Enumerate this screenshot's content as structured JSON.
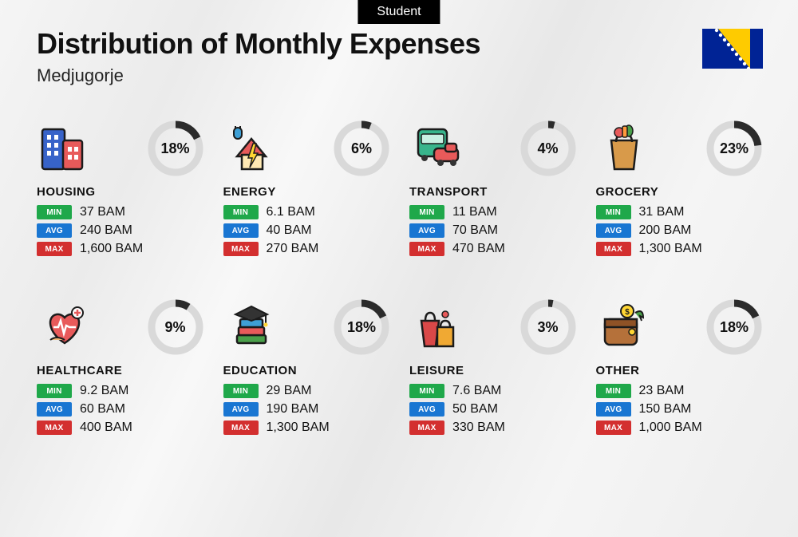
{
  "tag": "Student",
  "title": "Distribution of Monthly Expenses",
  "subtitle": "Medjugorje",
  "badges": {
    "min": "MIN",
    "avg": "AVG",
    "max": "MAX"
  },
  "currency": "BAM",
  "donut": {
    "track_color": "#d9d9d9",
    "fill_color": "#2b2b2b",
    "stroke_width": 9,
    "radius": 30
  },
  "flag": {
    "bg": "#002395",
    "triangle": "#fecb00",
    "star": "#ffffff"
  },
  "categories": [
    {
      "key": "housing",
      "label": "HOUSING",
      "percent": 18,
      "min": "37",
      "avg": "240",
      "max": "1,600"
    },
    {
      "key": "energy",
      "label": "ENERGY",
      "percent": 6,
      "min": "6.1",
      "avg": "40",
      "max": "270"
    },
    {
      "key": "transport",
      "label": "TRANSPORT",
      "percent": 4,
      "min": "11",
      "avg": "70",
      "max": "470"
    },
    {
      "key": "grocery",
      "label": "GROCERY",
      "percent": 23,
      "min": "31",
      "avg": "200",
      "max": "1,300"
    },
    {
      "key": "healthcare",
      "label": "HEALTHCARE",
      "percent": 9,
      "min": "9.2",
      "avg": "60",
      "max": "400"
    },
    {
      "key": "education",
      "label": "EDUCATION",
      "percent": 18,
      "min": "29",
      "avg": "190",
      "max": "1,300"
    },
    {
      "key": "leisure",
      "label": "LEISURE",
      "percent": 3,
      "min": "7.6",
      "avg": "50",
      "max": "330"
    },
    {
      "key": "other",
      "label": "OTHER",
      "percent": 18,
      "min": "23",
      "avg": "150",
      "max": "1,000"
    }
  ]
}
